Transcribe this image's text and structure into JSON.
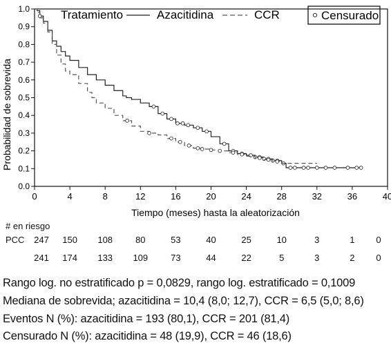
{
  "chart_data": {
    "type": "line",
    "title": "",
    "xlabel": "Tiempo (meses) hasta la aleatorización",
    "ylabel": "Probabilidad de sobrevida",
    "xlim": [
      0,
      40
    ],
    "ylim": [
      0,
      1
    ],
    "xticks": [
      "0",
      "4",
      "8",
      "12",
      "16",
      "20",
      "24",
      "28",
      "32",
      "36",
      "40"
    ],
    "yticks": [
      "0.0",
      "0.1",
      "0.2",
      "0.3",
      "0.4",
      "0.5",
      "0.6",
      "0.7",
      "0.8",
      "0.9",
      "1.0"
    ],
    "legend": {
      "heading": "Tratamiento",
      "censored_label": "Censurado",
      "placement": "top"
    },
    "series": [
      {
        "name": "Azacitidina",
        "style": "solid",
        "color": "#222222",
        "x": [
          0,
          0.3,
          0.6,
          1.0,
          1.5,
          2,
          2.5,
          3,
          3.5,
          4,
          5,
          6,
          7,
          8,
          9,
          10,
          10.4,
          11,
          12,
          13,
          14,
          15,
          16,
          17,
          18,
          19,
          20,
          21,
          22,
          23,
          24,
          25,
          26,
          27,
          28,
          28.5,
          30,
          32,
          34,
          36,
          37
        ],
        "y": [
          1.0,
          0.99,
          0.96,
          0.93,
          0.88,
          0.82,
          0.79,
          0.76,
          0.735,
          0.71,
          0.67,
          0.63,
          0.6,
          0.57,
          0.54,
          0.51,
          0.5,
          0.49,
          0.47,
          0.45,
          0.41,
          0.38,
          0.355,
          0.345,
          0.33,
          0.31,
          0.28,
          0.24,
          0.2,
          0.185,
          0.175,
          0.165,
          0.155,
          0.145,
          0.13,
          0.105,
          0.105,
          0.105,
          0.105,
          0.105,
          0.105
        ],
        "censored_x": [
          0.6,
          13.5,
          14.5,
          15.5,
          16.2,
          16.8,
          17.4,
          18.5,
          19.5,
          21.5,
          22.5,
          23.5,
          24.5,
          25,
          25.5,
          26,
          26.5,
          27,
          27.5,
          28.2,
          29,
          29.5,
          30.5,
          31,
          32,
          33,
          34,
          35.5,
          36.5,
          37
        ]
      },
      {
        "name": "CCR",
        "style": "dashed",
        "color": "#555555",
        "x": [
          0,
          0.3,
          0.6,
          1.0,
          1.5,
          2,
          2.5,
          3,
          3.5,
          4,
          5,
          6,
          6.5,
          7,
          8,
          9,
          10,
          11,
          12,
          13,
          14,
          15,
          16,
          17,
          18,
          19,
          20,
          21,
          22,
          23,
          24,
          25,
          26,
          27,
          28,
          30,
          32
        ],
        "y": [
          1.0,
          0.98,
          0.95,
          0.92,
          0.87,
          0.8,
          0.74,
          0.69,
          0.65,
          0.63,
          0.58,
          0.53,
          0.5,
          0.47,
          0.44,
          0.4,
          0.37,
          0.34,
          0.31,
          0.3,
          0.29,
          0.27,
          0.25,
          0.23,
          0.215,
          0.21,
          0.205,
          0.2,
          0.19,
          0.18,
          0.17,
          0.16,
          0.15,
          0.14,
          0.13,
          0.13,
          0.13
        ],
        "censored_x": [
          10.5,
          13,
          15.5,
          16.5,
          17.5,
          18.5,
          19,
          20,
          21,
          22.5,
          23.5,
          25.5,
          26.5,
          27.5
        ]
      }
    ],
    "at_risk": {
      "title": "# en riesgo",
      "times": [
        0,
        4,
        8,
        12,
        16,
        20,
        24,
        28,
        32,
        36,
        40
      ],
      "rows": [
        {
          "label": "PCC",
          "values": [
            "247",
            "150",
            "108",
            "80",
            "53",
            "40",
            "25",
            "10",
            "3",
            "1",
            "0"
          ]
        },
        {
          "label": "",
          "values": [
            "241",
            "174",
            "133",
            "109",
            "73",
            "44",
            "22",
            "5",
            "3",
            "2",
            "0"
          ]
        }
      ]
    },
    "stats": [
      "Rango log. no estratificado p = 0,0829, rango log. estratificado = 0,1009",
      "Mediana de sobrevida; azacitidina = 10,4 (8,0; 12,7), CCR = 6,5 (5,0; 8,6)",
      "Eventos N (%): azacitidina = 193 (80,1), CCR = 201 (81,4)",
      "Censurado N (%): azacitidina = 48 (19,9), CCR = 46 (18,6)"
    ]
  }
}
